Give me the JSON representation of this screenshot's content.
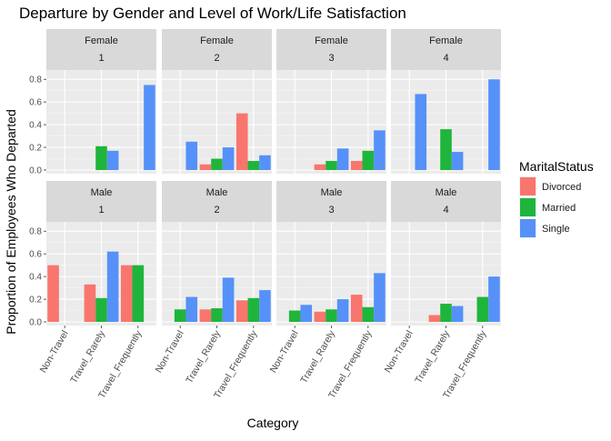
{
  "chart_data": {
    "type": "bar",
    "title": "Departure by Gender and Level of Work/Life Satisfaction",
    "xlabel": "Category",
    "ylabel": "Proportion of Employees Who Departed",
    "categories": [
      "Non-Travel",
      "Travel_Rarely",
      "Travel_Frequently"
    ],
    "ylim": [
      0,
      0.85
    ],
    "yticks": [
      0.0,
      0.2,
      0.4,
      0.6,
      0.8
    ],
    "ytick_labels": [
      "0.0",
      "0.2",
      "0.4",
      "0.6",
      "0.8"
    ],
    "grid": true,
    "legend": {
      "title": "MaritalStatus",
      "position": "right",
      "entries": [
        {
          "name": "Divorced",
          "color": "#F8766D"
        },
        {
          "name": "Married",
          "color": "#1FB53C"
        },
        {
          "name": "Single",
          "color": "#5591F8"
        }
      ]
    },
    "facet_rows": [
      "Female",
      "Male"
    ],
    "facet_cols": [
      "1",
      "2",
      "3",
      "4"
    ],
    "series_names": [
      "Divorced",
      "Married",
      "Single"
    ],
    "panels": [
      {
        "row": "Female",
        "col": "1",
        "values": {
          "Divorced": [
            null,
            null,
            null
          ],
          "Married": [
            null,
            0.21,
            null
          ],
          "Single": [
            null,
            0.17,
            0.75
          ]
        }
      },
      {
        "row": "Female",
        "col": "2",
        "values": {
          "Divorced": [
            null,
            0.05,
            0.5
          ],
          "Married": [
            null,
            0.1,
            0.08
          ],
          "Single": [
            0.25,
            0.2,
            0.13
          ]
        }
      },
      {
        "row": "Female",
        "col": "3",
        "values": {
          "Divorced": [
            null,
            0.05,
            0.08
          ],
          "Married": [
            null,
            0.08,
            0.17
          ],
          "Single": [
            null,
            0.19,
            0.35
          ]
        }
      },
      {
        "row": "Female",
        "col": "4",
        "values": {
          "Divorced": [
            null,
            null,
            null
          ],
          "Married": [
            null,
            0.36,
            null
          ],
          "Single": [
            0.67,
            0.16,
            0.8
          ]
        }
      },
      {
        "row": "Male",
        "col": "1",
        "values": {
          "Divorced": [
            0.5,
            0.33,
            0.5
          ],
          "Married": [
            null,
            0.21,
            0.5
          ],
          "Single": [
            null,
            0.62,
            null
          ]
        }
      },
      {
        "row": "Male",
        "col": "2",
        "values": {
          "Divorced": [
            null,
            0.11,
            0.19
          ],
          "Married": [
            0.11,
            0.12,
            0.21
          ],
          "Single": [
            0.22,
            0.39,
            0.28
          ]
        }
      },
      {
        "row": "Male",
        "col": "3",
        "values": {
          "Divorced": [
            null,
            0.09,
            0.24
          ],
          "Married": [
            0.1,
            0.11,
            0.13
          ],
          "Single": [
            0.15,
            0.2,
            0.43
          ]
        }
      },
      {
        "row": "Male",
        "col": "4",
        "values": {
          "Divorced": [
            null,
            0.06,
            null
          ],
          "Married": [
            null,
            0.16,
            0.22
          ],
          "Single": [
            null,
            0.14,
            0.4
          ]
        }
      }
    ]
  }
}
